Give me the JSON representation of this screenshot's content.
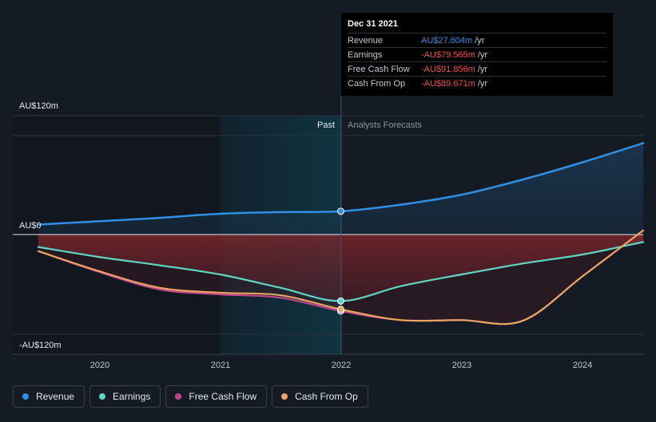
{
  "tooltip": {
    "date": "Dec 31 2021",
    "rows": [
      {
        "label": "Revenue",
        "value": "AU$27.604m",
        "unit": "/yr",
        "color": "#2f8fe5"
      },
      {
        "label": "Earnings",
        "value": "-AU$79.565m",
        "unit": "/yr",
        "color": "#ef4a4a"
      },
      {
        "label": "Free Cash Flow",
        "value": "-AU$91.856m",
        "unit": "/yr",
        "color": "#ef4a4a"
      },
      {
        "label": "Cash From Op",
        "value": "-AU$89.671m",
        "unit": "/yr",
        "color": "#ef4a4a"
      }
    ]
  },
  "regions": {
    "past": "Past",
    "forecast": "Analysts Forecasts"
  },
  "legend": [
    {
      "label": "Revenue",
      "color": "#2f8fe5"
    },
    {
      "label": "Earnings",
      "color": "#5fd6c4"
    },
    {
      "label": "Free Cash Flow",
      "color": "#c2448e"
    },
    {
      "label": "Cash From Op",
      "color": "#e9a55f"
    }
  ],
  "colors": {
    "background": "#151b24",
    "past_band": "#0d2a36",
    "positive_fill": "#1c3a55",
    "negative_fill": "#8a2a2a"
  },
  "chart_data": {
    "type": "line",
    "y_tick_labels": [
      "AU$120m",
      "AU$0",
      "-AU$120m"
    ],
    "y_ticks": [
      120,
      0,
      -120
    ],
    "ylim": [
      -145,
      145
    ],
    "xlim": [
      2019.5,
      2024.5
    ],
    "x_ticks": [
      2020,
      2021,
      2022,
      2023,
      2024
    ],
    "x_tick_labels": [
      "2020",
      "2021",
      "2022",
      "2023",
      "2024"
    ],
    "past_end": 2022.0,
    "past_start": 2021.0,
    "series": [
      {
        "name": "Revenue",
        "color": "#2f8fe5",
        "x": [
          2019.5,
          2020.0,
          2020.5,
          2021.0,
          2021.5,
          2022.0,
          2022.5,
          2023.0,
          2023.5,
          2024.0,
          2024.5
        ],
        "y": [
          12,
          16,
          20,
          25,
          27,
          28,
          36,
          48,
          66,
          87,
          110
        ]
      },
      {
        "name": "Earnings",
        "color": "#5fd6c4",
        "x": [
          2019.5,
          2020.0,
          2020.5,
          2021.0,
          2021.5,
          2022.0,
          2022.5,
          2023.0,
          2023.5,
          2024.0,
          2024.5
        ],
        "y": [
          -15,
          -27,
          -37,
          -48,
          -64,
          -80,
          -62,
          -48,
          -35,
          -24,
          -9
        ]
      },
      {
        "name": "Free Cash Flow",
        "color": "#c2448e",
        "x": [
          2019.5,
          2020.0,
          2020.5,
          2021.0,
          2021.5,
          2022.0,
          2022.5,
          2023.0,
          2023.5,
          2024.0,
          2024.5
        ],
        "y": [
          -20,
          -45,
          -66,
          -72,
          -76,
          -92,
          -103,
          -103,
          -104,
          -50,
          5
        ]
      },
      {
        "name": "Cash From Op",
        "color": "#e9a55f",
        "x": [
          2019.5,
          2020.0,
          2020.5,
          2021.0,
          2021.5,
          2022.0,
          2022.5,
          2023.0,
          2023.5,
          2024.0,
          2024.5
        ],
        "y": [
          -20,
          -44,
          -64,
          -70,
          -73,
          -90,
          -103,
          -103,
          -104,
          -50,
          5
        ]
      }
    ]
  }
}
